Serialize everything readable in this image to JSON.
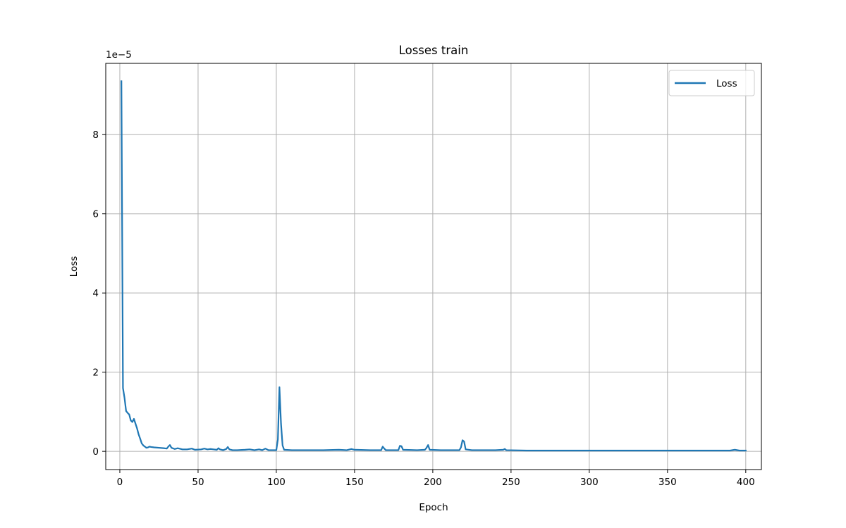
{
  "chart_data": {
    "type": "line",
    "title": "Losses train",
    "xlabel": "Epoch",
    "ylabel": "Loss",
    "y_offset_text": "1e−5",
    "y_scale_factor": 1e-05,
    "xlim": [
      -9,
      410
    ],
    "ylim": [
      -0.46,
      9.8
    ],
    "x_ticks": [
      0,
      50,
      100,
      150,
      200,
      250,
      300,
      350,
      400
    ],
    "y_ticks": [
      0,
      2,
      4,
      6,
      8
    ],
    "grid": true,
    "legend_position": "top-right",
    "series": [
      {
        "name": "Loss",
        "color": "#1f77b4",
        "points": [
          [
            1,
            9.35
          ],
          [
            2,
            1.6
          ],
          [
            3,
            1.35
          ],
          [
            4,
            1.02
          ],
          [
            5,
            0.97
          ],
          [
            6,
            0.93
          ],
          [
            7,
            0.78
          ],
          [
            8,
            0.74
          ],
          [
            9,
            0.82
          ],
          [
            10,
            0.7
          ],
          [
            11,
            0.58
          ],
          [
            12,
            0.43
          ],
          [
            13,
            0.32
          ],
          [
            14,
            0.2
          ],
          [
            15,
            0.15
          ],
          [
            16,
            0.12
          ],
          [
            17,
            0.09
          ],
          [
            18,
            0.1
          ],
          [
            19,
            0.12
          ],
          [
            20,
            0.11
          ],
          [
            22,
            0.1
          ],
          [
            25,
            0.09
          ],
          [
            28,
            0.08
          ],
          [
            30,
            0.07
          ],
          [
            31,
            0.12
          ],
          [
            32,
            0.16
          ],
          [
            33,
            0.09
          ],
          [
            35,
            0.06
          ],
          [
            37,
            0.08
          ],
          [
            40,
            0.05
          ],
          [
            43,
            0.05
          ],
          [
            46,
            0.07
          ],
          [
            48,
            0.04
          ],
          [
            52,
            0.05
          ],
          [
            54,
            0.07
          ],
          [
            56,
            0.05
          ],
          [
            58,
            0.06
          ],
          [
            60,
            0.05
          ],
          [
            62,
            0.04
          ],
          [
            63,
            0.08
          ],
          [
            64,
            0.05
          ],
          [
            66,
            0.03
          ],
          [
            68,
            0.06
          ],
          [
            69,
            0.11
          ],
          [
            70,
            0.05
          ],
          [
            72,
            0.03
          ],
          [
            75,
            0.03
          ],
          [
            80,
            0.04
          ],
          [
            83,
            0.05
          ],
          [
            86,
            0.03
          ],
          [
            89,
            0.05
          ],
          [
            91,
            0.03
          ],
          [
            93,
            0.07
          ],
          [
            95,
            0.03
          ],
          [
            98,
            0.03
          ],
          [
            100,
            0.03
          ],
          [
            101,
            0.3
          ],
          [
            102,
            1.62
          ],
          [
            103,
            0.7
          ],
          [
            104,
            0.15
          ],
          [
            105,
            0.04
          ],
          [
            110,
            0.03
          ],
          [
            120,
            0.03
          ],
          [
            130,
            0.03
          ],
          [
            140,
            0.04
          ],
          [
            145,
            0.03
          ],
          [
            148,
            0.06
          ],
          [
            150,
            0.04
          ],
          [
            160,
            0.03
          ],
          [
            167,
            0.03
          ],
          [
            168,
            0.12
          ],
          [
            169,
            0.07
          ],
          [
            170,
            0.03
          ],
          [
            178,
            0.03
          ],
          [
            179,
            0.14
          ],
          [
            180,
            0.13
          ],
          [
            181,
            0.04
          ],
          [
            190,
            0.03
          ],
          [
            195,
            0.04
          ],
          [
            196,
            0.09
          ],
          [
            197,
            0.16
          ],
          [
            198,
            0.04
          ],
          [
            205,
            0.03
          ],
          [
            210,
            0.03
          ],
          [
            217,
            0.03
          ],
          [
            218,
            0.1
          ],
          [
            219,
            0.28
          ],
          [
            220,
            0.25
          ],
          [
            221,
            0.05
          ],
          [
            225,
            0.03
          ],
          [
            230,
            0.03
          ],
          [
            240,
            0.03
          ],
          [
            245,
            0.04
          ],
          [
            246,
            0.06
          ],
          [
            247,
            0.03
          ],
          [
            260,
            0.02
          ],
          [
            280,
            0.02
          ],
          [
            300,
            0.02
          ],
          [
            320,
            0.02
          ],
          [
            340,
            0.02
          ],
          [
            360,
            0.02
          ],
          [
            380,
            0.02
          ],
          [
            390,
            0.02
          ],
          [
            393,
            0.04
          ],
          [
            396,
            0.02
          ],
          [
            400,
            0.02
          ]
        ]
      }
    ]
  }
}
